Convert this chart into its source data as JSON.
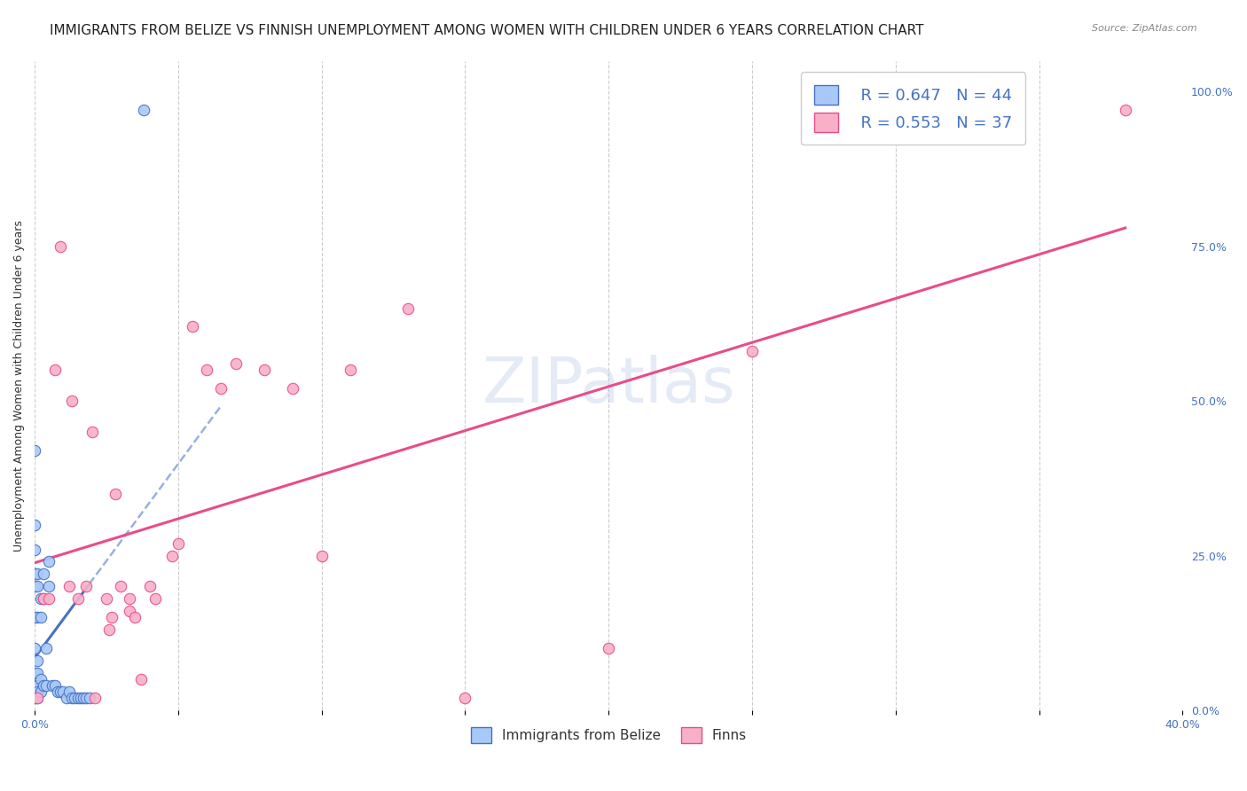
{
  "title": "IMMIGRANTS FROM BELIZE VS FINNISH UNEMPLOYMENT AMONG WOMEN WITH CHILDREN UNDER 6 YEARS CORRELATION CHART",
  "source": "Source: ZipAtlas.com",
  "ylabel": "Unemployment Among Women with Children Under 6 years",
  "xlim": [
    0.0,
    0.4
  ],
  "ylim": [
    0.0,
    1.05
  ],
  "xtick_positions": [
    0.0,
    0.05,
    0.1,
    0.15,
    0.2,
    0.25,
    0.3,
    0.35,
    0.4
  ],
  "xticklabels": [
    "0.0%",
    "",
    "",
    "",
    "",
    "",
    "",
    "",
    "40.0%"
  ],
  "yticks_right": [
    0.0,
    0.25,
    0.5,
    0.75,
    1.0
  ],
  "yticklabels_right": [
    "0.0%",
    "25.0%",
    "50.0%",
    "75.0%",
    "100.0%"
  ],
  "legend_r1": "R = 0.647",
  "legend_n1": "N = 44",
  "legend_r2": "R = 0.553",
  "legend_n2": "N = 37",
  "color_blue": "#a8c8f8",
  "color_pink": "#f8b0c8",
  "color_blue_line": "#4472c4",
  "color_pink_line": "#e84c8b",
  "color_blue_dark": "#4472c4",
  "color_pink_dark": "#e84c8b",
  "watermark": "ZIPatlas",
  "belize_x": [
    0.0,
    0.0,
    0.0,
    0.0,
    0.0,
    0.0,
    0.0,
    0.0,
    0.0,
    0.0,
    0.001,
    0.001,
    0.001,
    0.001,
    0.001,
    0.001,
    0.001,
    0.001,
    0.002,
    0.002,
    0.002,
    0.002,
    0.003,
    0.003,
    0.003,
    0.004,
    0.004,
    0.005,
    0.005,
    0.006,
    0.007,
    0.008,
    0.009,
    0.01,
    0.011,
    0.012,
    0.013,
    0.014,
    0.015,
    0.016,
    0.017,
    0.018,
    0.019,
    0.038
  ],
  "belize_y": [
    0.42,
    0.3,
    0.26,
    0.22,
    0.2,
    0.15,
    0.1,
    0.06,
    0.04,
    0.02,
    0.22,
    0.2,
    0.15,
    0.08,
    0.06,
    0.04,
    0.03,
    0.02,
    0.18,
    0.15,
    0.05,
    0.03,
    0.22,
    0.18,
    0.04,
    0.1,
    0.04,
    0.24,
    0.2,
    0.04,
    0.04,
    0.03,
    0.03,
    0.03,
    0.02,
    0.03,
    0.02,
    0.02,
    0.02,
    0.02,
    0.02,
    0.02,
    0.02,
    0.97
  ],
  "finn_x": [
    0.001,
    0.003,
    0.005,
    0.007,
    0.009,
    0.012,
    0.013,
    0.015,
    0.018,
    0.02,
    0.021,
    0.025,
    0.026,
    0.027,
    0.028,
    0.03,
    0.033,
    0.033,
    0.035,
    0.037,
    0.04,
    0.042,
    0.048,
    0.05,
    0.055,
    0.06,
    0.065,
    0.07,
    0.08,
    0.09,
    0.1,
    0.11,
    0.13,
    0.15,
    0.2,
    0.25,
    0.38
  ],
  "finn_y": [
    0.02,
    0.18,
    0.18,
    0.55,
    0.75,
    0.2,
    0.5,
    0.18,
    0.2,
    0.45,
    0.02,
    0.18,
    0.13,
    0.15,
    0.35,
    0.2,
    0.18,
    0.16,
    0.15,
    0.05,
    0.2,
    0.18,
    0.25,
    0.27,
    0.62,
    0.55,
    0.52,
    0.56,
    0.55,
    0.52,
    0.25,
    0.55,
    0.65,
    0.02,
    0.1,
    0.58,
    0.97
  ],
  "title_fontsize": 11,
  "axis_fontsize": 9,
  "label_fontsize": 9
}
